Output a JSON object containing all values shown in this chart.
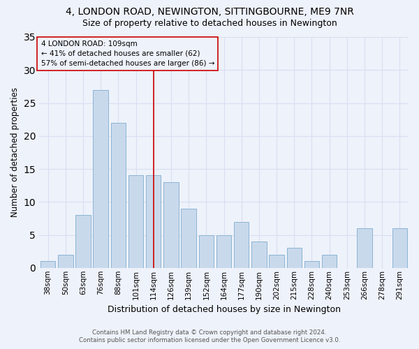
{
  "title": "4, LONDON ROAD, NEWINGTON, SITTINGBOURNE, ME9 7NR",
  "subtitle": "Size of property relative to detached houses in Newington",
  "xlabel": "Distribution of detached houses by size in Newington",
  "ylabel": "Number of detached properties",
  "categories": [
    "38sqm",
    "50sqm",
    "63sqm",
    "76sqm",
    "88sqm",
    "101sqm",
    "114sqm",
    "126sqm",
    "139sqm",
    "152sqm",
    "164sqm",
    "177sqm",
    "190sqm",
    "202sqm",
    "215sqm",
    "228sqm",
    "240sqm",
    "253sqm",
    "266sqm",
    "278sqm",
    "291sqm"
  ],
  "values": [
    1,
    2,
    8,
    27,
    22,
    14,
    14,
    13,
    9,
    5,
    5,
    7,
    4,
    2,
    3,
    1,
    2,
    0,
    6,
    0,
    6
  ],
  "bar_color": "#c9d9ec",
  "bar_edge_color": "#8ab4d4",
  "background_color": "#eef2fa",
  "grid_color": "#d8dff0",
  "vline_x": 6.0,
  "vline_color": "#cc0000",
  "annotation_line1": "4 LONDON ROAD: 109sqm",
  "annotation_line2": "← 41% of detached houses are smaller (62)",
  "annotation_line3": "57% of semi-detached houses are larger (86) →",
  "annotation_box_color": "#cc0000",
  "ylim": [
    0,
    35
  ],
  "yticks": [
    0,
    5,
    10,
    15,
    20,
    25,
    30,
    35
  ],
  "footnote1": "Contains HM Land Registry data © Crown copyright and database right 2024.",
  "footnote2": "Contains public sector information licensed under the Open Government Licence v3.0."
}
